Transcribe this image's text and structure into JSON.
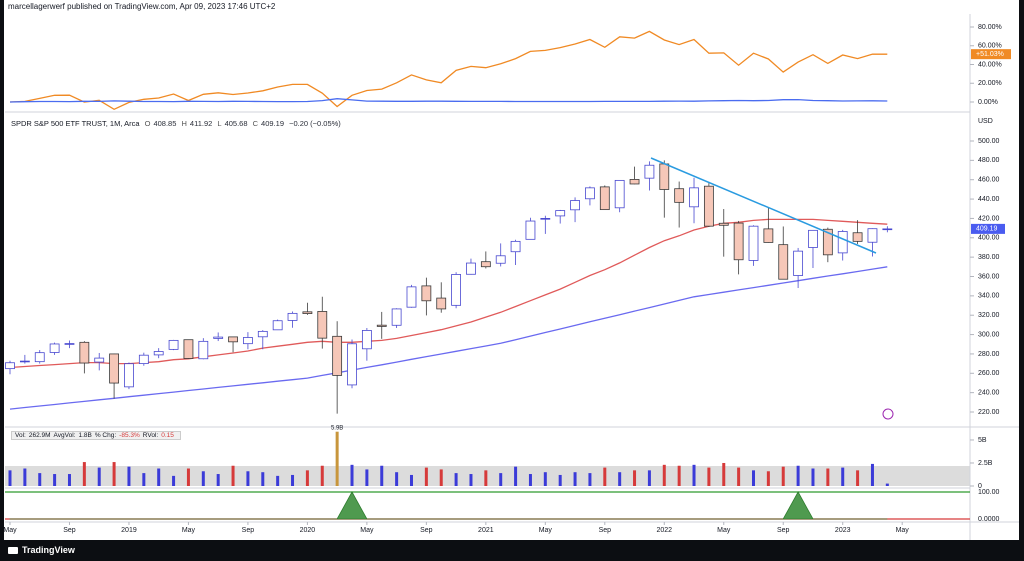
{
  "header": {
    "text": "marcellagerwerf published on TradingView.com, Apr 09, 2023 17:46 UTC+2"
  },
  "footer": {
    "brand": "TradingView"
  },
  "chart_data": [
    {
      "type": "line",
      "series": [
        {
          "color": "#f08a24",
          "values": [
            0,
            0.6,
            3.8,
            7.2,
            7.3,
            -0.1,
            1.8,
            -7.8,
            -0.4,
            2.9,
            4.3,
            8.5,
            1.6,
            8.2,
            9.8,
            8.0,
            9.6,
            12.0,
            16.0,
            18.8,
            18.8,
            9.4,
            -4.8,
            7.2,
            12.3,
            13.8,
            20.5,
            28.9,
            23.6,
            20.5,
            33.7,
            38.0,
            36.6,
            40.8,
            46.3,
            54.0,
            55.0,
            58.0,
            61.9,
            66.7,
            58.4,
            69.5,
            68.2,
            75.3,
            66.1,
            61.2,
            66.7,
            52.1,
            52.4,
            39.3,
            52.1,
            45.9,
            31.9,
            42.6,
            50.5,
            41.2,
            50.1,
            46.3,
            51.1,
            51.03
          ]
        },
        {
          "color": "#4a6cf0",
          "values": [
            0,
            0.3,
            0.5,
            0.5,
            0.4,
            0.8,
            0.6,
            1.2,
            0.9,
            0.5,
            0.5,
            0.4,
            0.8,
            0.6,
            0.5,
            0.7,
            0.6,
            0.5,
            0.4,
            0.4,
            0.5,
            1.5,
            3.5,
            2.2,
            1,
            0.9,
            0.8,
            0.7,
            0.9,
            0.9,
            0.7,
            0.6,
            0.6,
            0.6,
            0.5,
            0.5,
            0.5,
            0.5,
            0.5,
            0.5,
            0.6,
            0.6,
            0.6,
            0.6,
            0.9,
            1,
            0.9,
            1.2,
            1.4,
            1.6,
            1.4,
            1.6,
            2.5,
            2.6,
            1.6,
            1.4,
            1.1,
            1.2,
            1.3,
            1.1
          ]
        }
      ],
      "badge": "+51.03%",
      "ylim": [
        -8.53,
        92.8
      ],
      "yticks": [
        {
          "value": 80,
          "label": "80.00%"
        },
        {
          "value": 60,
          "label": "60.00%"
        },
        {
          "value": 40,
          "label": "40.00%"
        },
        {
          "value": 20,
          "label": "20.00%"
        },
        {
          "value": 0,
          "label": "0.00%"
        }
      ]
    },
    {
      "type": "candlestick",
      "title": "SPDR S&P 500 ETF TRUST, 1M, Arca",
      "ohlc_labels": [
        "O",
        "H",
        "L",
        "C"
      ],
      "change_label": "−0.20 (−0.05%)",
      "unit": "USD",
      "x": [
        "2018-05",
        "2018-06",
        "2018-07",
        "2018-08",
        "2018-09",
        "2018-10",
        "2018-11",
        "2018-12",
        "2019-01",
        "2019-02",
        "2019-03",
        "2019-04",
        "2019-05",
        "2019-06",
        "2019-07",
        "2019-08",
        "2019-09",
        "2019-10",
        "2019-11",
        "2019-12",
        "2020-01",
        "2020-02",
        "2020-03",
        "2020-04",
        "2020-05",
        "2020-06",
        "2020-07",
        "2020-08",
        "2020-09",
        "2020-10",
        "2020-11",
        "2020-12",
        "2021-01",
        "2021-02",
        "2021-03",
        "2021-04",
        "2021-05",
        "2021-06",
        "2021-07",
        "2021-08",
        "2021-09",
        "2021-10",
        "2021-11",
        "2021-12",
        "2022-01",
        "2022-02",
        "2022-03",
        "2022-04",
        "2022-05",
        "2022-06",
        "2022-07",
        "2022-08",
        "2022-09",
        "2022-10",
        "2022-11",
        "2022-12",
        "2023-01",
        "2023-02",
        "2023-03",
        "2023-04"
      ],
      "open": [
        264.8,
        272,
        272,
        281.5,
        290,
        292,
        271.6,
        280,
        245.98,
        270,
        279,
        284.7,
        294.7,
        275,
        296,
        297.6,
        290.6,
        297.7,
        304.9,
        314.6,
        323.5,
        323.9,
        298.2,
        247.98,
        285.3,
        309.7,
        309.6,
        328.3,
        350.3,
        337.7,
        330.2,
        362.3,
        375.3,
        373.7,
        385.6,
        398.4,
        419.4,
        422.6,
        428.9,
        440.3,
        452.6,
        430.98,
        460.3,
        461.6,
        476.3,
        450.7,
        432,
        453.3,
        415,
        415.2,
        376.6,
        409.2,
        392.9,
        361,
        390,
        408.8,
        384.4,
        405.2,
        395.4,
        408.85
      ],
      "high": [
        273,
        279,
        284,
        291.7,
        293.9,
        293.2,
        281,
        280.4,
        271.2,
        281.3,
        286,
        294.5,
        294.9,
        296.3,
        302.2,
        297.8,
        302.5,
        304.6,
        315.5,
        323.8,
        332.9,
        339.1,
        313.8,
        294.9,
        306.8,
        323.4,
        327.2,
        351.3,
        358.8,
        354,
        364.4,
        378.5,
        385.9,
        394.2,
        398,
        420.7,
        422.8,
        428.8,
        441.8,
        453.1,
        454.1,
        459.6,
        473.5,
        479,
        479.98,
        458.1,
        462,
        457.8,
        429.7,
        417.4,
        413,
        431.7,
        411.7,
        389.5,
        407.7,
        410.5,
        408.2,
        418.3,
        409.7,
        411.92
      ],
      "low": [
        259,
        270,
        270,
        279,
        286,
        259.9,
        263,
        233.8,
        243.7,
        267.8,
        275.6,
        283.9,
        274.9,
        274.5,
        293.3,
        281.7,
        284.8,
        284.8,
        304.7,
        307.1,
        320.4,
        285.5,
        218.3,
        244.6,
        272.99,
        295.6,
        306.8,
        327.7,
        319.8,
        322.6,
        327.2,
        362,
        368.3,
        370.4,
        371.9,
        398.2,
        404,
        414.7,
        416.2,
        433.5,
        428.8,
        426.4,
        455.3,
        448.9,
        420.8,
        410.6,
        415,
        411.2,
        380.5,
        362.2,
        371,
        395,
        357,
        348.1,
        368.8,
        374.8,
        376.5,
        393.6,
        380.7,
        405.68
      ],
      "close": [
        270.9,
        272.6,
        281.3,
        290.3,
        290.7,
        270.6,
        275.7,
        249.9,
        269.9,
        278.7,
        282.5,
        294,
        275.3,
        293,
        297.4,
        292.5,
        297,
        303.3,
        314.3,
        321.9,
        321.7,
        296.3,
        257.8,
        290.5,
        304.3,
        308.4,
        326.5,
        349.3,
        334.9,
        326.5,
        362.1,
        373.9,
        370.1,
        381.4,
        396.3,
        417.3,
        420,
        428.1,
        438.5,
        451.6,
        429.1,
        459.3,
        455.6,
        474.96,
        449.9,
        436.6,
        451.6,
        412,
        412.9,
        377.3,
        411.99,
        395.2,
        357.2,
        386.2,
        407.7,
        382.4,
        406.5,
        396.3,
        409.39,
        409.19
      ],
      "up_color": "#ffffff",
      "up_border": "#4848d0",
      "down_color": "#f6c7b8",
      "down_border": "#3a3a3a",
      "series": [
        {
          "color": "#e05a5a",
          "values": [
            266,
            267,
            268,
            269,
            270,
            271,
            271,
            270,
            270,
            271,
            272,
            274,
            275,
            277,
            279,
            281,
            283,
            286,
            288,
            290,
            292,
            293,
            292,
            292,
            293,
            294,
            296,
            299,
            302,
            305,
            309,
            313,
            318,
            323,
            329,
            335,
            341,
            347,
            354,
            361,
            367,
            374,
            382,
            390,
            397,
            402,
            408,
            412,
            415,
            416,
            418,
            419,
            419,
            419,
            419,
            418,
            417,
            416,
            415,
            414
          ]
        },
        {
          "color": "#6a6af0",
          "values": [
            223,
            224.6,
            226.2,
            227.8,
            229.4,
            231,
            232.6,
            234.2,
            235.8,
            237.4,
            239,
            240.6,
            242.2,
            243.8,
            245.4,
            247,
            248.6,
            250.2,
            251.8,
            253.4,
            255,
            257.8,
            260.5,
            263.3,
            266.1,
            268.8,
            271.6,
            274.4,
            277.2,
            279.9,
            282.7,
            285.5,
            288.2,
            291,
            294.7,
            298.4,
            302.1,
            305.8,
            309.5,
            313.2,
            316.8,
            320.5,
            324.2,
            327.9,
            331.6,
            335.3,
            339,
            341.4,
            343.8,
            346.2,
            348.5,
            350.9,
            353.3,
            355.7,
            358.1,
            360.5,
            362.8,
            365.2,
            367.6,
            370
          ]
        }
      ],
      "badge_color": "#4a5cf0",
      "ylim": [
        206.57,
        526.86
      ],
      "yticks": [
        {
          "value": 500,
          "label": "500.00"
        },
        {
          "value": 480,
          "label": "480.00"
        },
        {
          "value": 460,
          "label": "460.00"
        },
        {
          "value": 440,
          "label": "440.00"
        },
        {
          "value": 420,
          "label": "420.00"
        },
        {
          "value": 400,
          "label": "400.00"
        },
        {
          "value": 380,
          "label": "380.00"
        },
        {
          "value": 360,
          "label": "360.00"
        },
        {
          "value": 340,
          "label": "340.00"
        },
        {
          "value": 320,
          "label": "320.00"
        },
        {
          "value": 300,
          "label": "300.00"
        },
        {
          "value": 280,
          "label": "280.00"
        },
        {
          "value": 260,
          "label": "260.00"
        },
        {
          "value": 240,
          "label": "240.00"
        },
        {
          "value": 220,
          "label": "220.00"
        }
      ],
      "xticks": [
        {
          "value": "2018-05",
          "label": "May"
        },
        {
          "value": "2018-09",
          "label": "Sep"
        },
        {
          "value": "2019-01",
          "label": "2019"
        },
        {
          "value": "2019-05",
          "label": "May"
        },
        {
          "value": "2019-09",
          "label": "Sep"
        },
        {
          "value": "2020-01",
          "label": "2020"
        },
        {
          "value": "2020-05",
          "label": "May"
        },
        {
          "value": "2020-09",
          "label": "Sep"
        },
        {
          "value": "2021-01",
          "label": "2021"
        },
        {
          "value": "2021-05",
          "label": "May"
        },
        {
          "value": "2021-09",
          "label": "Sep"
        },
        {
          "value": "2022-01",
          "label": "2022"
        },
        {
          "value": "2022-05",
          "label": "May"
        },
        {
          "value": "2022-09",
          "label": "Sep"
        },
        {
          "value": "2023-01",
          "label": "2023"
        },
        {
          "value": "2023-05",
          "label": "May"
        }
      ]
    },
    {
      "type": "bar",
      "legend": [
        {
          "name": "Vol:",
          "text": "262.9M"
        },
        {
          "name": "AvgVol:",
          "text": "1.8B"
        },
        {
          "name": "% Chg:",
          "text": "-85.3%"
        },
        {
          "name": "RVol:",
          "text": "0.15"
        }
      ],
      "values": [
        1.7,
        1.9,
        1.4,
        1.3,
        1.3,
        2.6,
        2.0,
        2.6,
        2.1,
        1.4,
        1.9,
        1.1,
        1.9,
        1.6,
        1.3,
        2.2,
        1.6,
        1.5,
        1.1,
        1.2,
        1.7,
        2.2,
        5.9,
        2.3,
        1.8,
        2.2,
        1.5,
        1.2,
        2.0,
        1.8,
        1.4,
        1.3,
        1.7,
        1.4,
        2.1,
        1.3,
        1.5,
        1.2,
        1.5,
        1.4,
        2.0,
        1.5,
        1.7,
        1.7,
        2.3,
        2.2,
        2.3,
        2.0,
        2.5,
        2.0,
        1.7,
        1.6,
        2.1,
        2.2,
        1.9,
        1.9,
        2.0,
        1.7,
        2.4,
        0.2629
      ],
      "colors": [
        "#3b3bd8",
        "#3b3bd8",
        "#3b3bd8",
        "#3b3bd8",
        "#3b3bd8",
        "#d63a3a",
        "#3b3bd8",
        "#d63a3a",
        "#3b3bd8",
        "#3b3bd8",
        "#3b3bd8",
        "#3b3bd8",
        "#d63a3a",
        "#3b3bd8",
        "#3b3bd8",
        "#d63a3a",
        "#3b3bd8",
        "#3b3bd8",
        "#3b3bd8",
        "#3b3bd8",
        "#d63a3a",
        "#d63a3a",
        "#c8963c",
        "#3b3bd8",
        "#3b3bd8",
        "#3b3bd8",
        "#3b3bd8",
        "#3b3bd8",
        "#d63a3a",
        "#d63a3a",
        "#3b3bd8",
        "#3b3bd8",
        "#d63a3a",
        "#3b3bd8",
        "#3b3bd8",
        "#3b3bd8",
        "#3b3bd8",
        "#3b3bd8",
        "#3b3bd8",
        "#3b3bd8",
        "#d63a3a",
        "#3b3bd8",
        "#d63a3a",
        "#3b3bd8",
        "#d63a3a",
        "#d63a3a",
        "#3b3bd8",
        "#d63a3a",
        "#d63a3a",
        "#d63a3a",
        "#3b3bd8",
        "#d63a3a",
        "#d63a3a",
        "#3b3bd8",
        "#3b3bd8",
        "#d63a3a",
        "#3b3bd8",
        "#d63a3a",
        "#3b3bd8",
        "#3b3bd8"
      ],
      "peak_label": "5.9B",
      "ylim": [
        0,
        6.3
      ],
      "yticks": [
        {
          "value": 5,
          "label": "5B"
        },
        {
          "value": 2.5,
          "label": "2.5B"
        },
        0
      ]
    },
    {
      "type": "area",
      "color": "#4f9a4f",
      "values": [
        0,
        0,
        0,
        0,
        0,
        0,
        0,
        0,
        0,
        0,
        0,
        0,
        0,
        0,
        0,
        0,
        0,
        0,
        0,
        0,
        0,
        0,
        0,
        100,
        0,
        0,
        0,
        0,
        0,
        0,
        0,
        0,
        0,
        0,
        0,
        0,
        0,
        0,
        0,
        0,
        0,
        0,
        0,
        0,
        0,
        0,
        0,
        0,
        0,
        0,
        0,
        0,
        0,
        100,
        0,
        0,
        0,
        0,
        0,
        0
      ],
      "tick_line_colors": [
        "#2e9b2e",
        "#d63a3a"
      ],
      "band_color": "#e6f4e6",
      "ylim": [
        -7.41,
        111.1
      ],
      "yticks": [
        {
          "value": 100,
          "label": "100.00"
        },
        {
          "value": 0,
          "label": "0.0000"
        }
      ]
    }
  ]
}
